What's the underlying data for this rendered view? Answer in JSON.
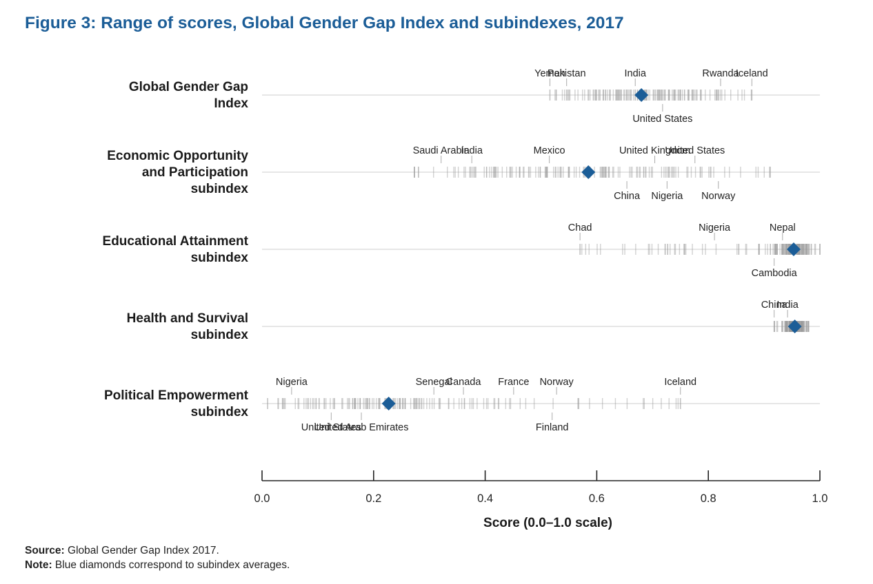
{
  "title": "Figure 3: Range of scores, Global Gender Gap Index and subindexes, 2017",
  "footnotes": {
    "source_label": "Source:",
    "source_text": "Global Gender Gap Index 2017.",
    "note_label": "Note:",
    "note_text": "Blue diamonds correspond to subindex averages."
  },
  "colors": {
    "title": "#1b5d97",
    "diamond": "#1b5d97",
    "tick": "#999999",
    "baseline": "#d6d6d6",
    "axis": "#222222"
  },
  "chart_data": {
    "type": "strip",
    "xlabel": "Score (0.0–1.0 scale)",
    "xlim": [
      0,
      1
    ],
    "xticks": [
      "0.0",
      "0.2",
      "0.4",
      "0.6",
      "0.8",
      "1.0"
    ],
    "rows": [
      {
        "name": [
          "Global Gender Gap",
          "Index"
        ],
        "average": 0.68,
        "min": 0.516,
        "max": 0.878,
        "annotations_above": [
          {
            "label": "Yemen",
            "x": 0.516
          },
          {
            "label": "Pakistan",
            "x": 0.546
          },
          {
            "label": "India",
            "x": 0.669
          },
          {
            "label": "Rwanda",
            "x": 0.822
          },
          {
            "label": "Iceland",
            "x": 0.878
          }
        ],
        "annotations_below": [
          {
            "label": "United States",
            "x": 0.718
          }
        ]
      },
      {
        "name": [
          "Economic Opportunity",
          "and Participation",
          "subindex"
        ],
        "average": 0.585,
        "min": 0.273,
        "max": 0.911,
        "annotations_above": [
          {
            "label": "Saudi Arabia",
            "x": 0.321
          },
          {
            "label": "India",
            "x": 0.376
          },
          {
            "label": "Mexico",
            "x": 0.515
          },
          {
            "label": "United Kingdom",
            "x": 0.704
          },
          {
            "label": "United States",
            "x": 0.776
          }
        ],
        "annotations_below": [
          {
            "label": "China",
            "x": 0.654
          },
          {
            "label": "Nigeria",
            "x": 0.726
          },
          {
            "label": "Norway",
            "x": 0.818
          }
        ]
      },
      {
        "name": [
          "Educational Attainment",
          "subindex"
        ],
        "average": 0.953,
        "min": 0.57,
        "max": 1.0,
        "annotations_above": [
          {
            "label": "Chad",
            "x": 0.57
          },
          {
            "label": "Nigeria",
            "x": 0.811
          },
          {
            "label": "Nepal",
            "x": 0.933
          }
        ],
        "annotations_below": [
          {
            "label": "Cambodia",
            "x": 0.918
          }
        ]
      },
      {
        "name": [
          "Health and Survival",
          "subindex"
        ],
        "average": 0.955,
        "min": 0.918,
        "max": 0.98,
        "annotations_above": [
          {
            "label": "China",
            "x": 0.918
          },
          {
            "label": "India",
            "x": 0.942
          }
        ],
        "annotations_below": []
      },
      {
        "name": [
          "Political Empowerment",
          "subindex"
        ],
        "average": 0.227,
        "min": 0.01,
        "max": 0.75,
        "annotations_above": [
          {
            "label": "Nigeria",
            "x": 0.053
          },
          {
            "label": "Senegal",
            "x": 0.308
          },
          {
            "label": "Canada",
            "x": 0.361
          },
          {
            "label": "France",
            "x": 0.451
          },
          {
            "label": "Norway",
            "x": 0.528
          },
          {
            "label": "Iceland",
            "x": 0.75
          }
        ],
        "annotations_below": [
          {
            "label": "United States",
            "x": 0.124
          },
          {
            "label": "United Arab Emirates",
            "x": 0.178
          },
          {
            "label": "Finland",
            "x": 0.52
          }
        ]
      }
    ]
  }
}
